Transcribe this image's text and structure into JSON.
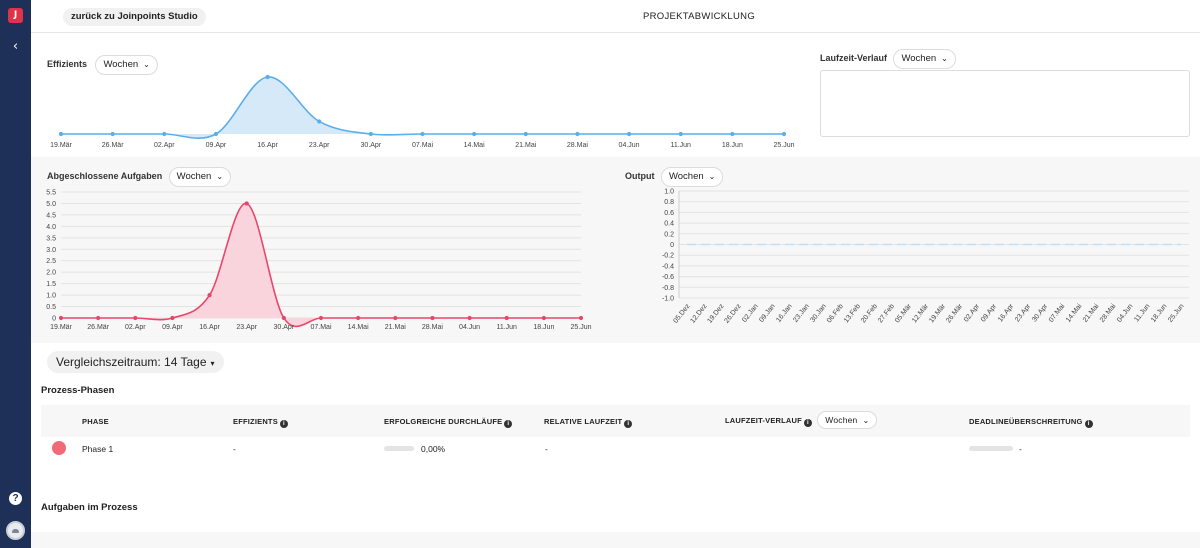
{
  "sidebar": {
    "logo_letter": "J",
    "items": [
      {
        "icon": "chevron-left-icon",
        "glyph": "‹"
      },
      {
        "icon": "help-icon",
        "glyph": "?"
      },
      {
        "icon": "avatar-icon"
      }
    ]
  },
  "header": {
    "back_label": "zurück zu Joinpoints Studio",
    "title": "PROJEKTABWICKLUNG"
  },
  "panels": {
    "efficiency": {
      "label": "Effizients",
      "select_value": "Wochen"
    },
    "runtime_history": {
      "label": "Laufzeit-Verlauf",
      "select_value": "Wochen"
    },
    "completed_tasks": {
      "label": "Abgeschlossene Aufgaben",
      "select_value": "Wochen"
    },
    "output": {
      "label": "Output",
      "select_value": "Wochen"
    }
  },
  "compare": {
    "label": "Vergleichszeitraum: 14 Tage"
  },
  "process_phases": {
    "title": "Prozess-Phasen",
    "columns": [
      "PHASE",
      "EFFIZIENTS",
      "ERFOLGREICHE DURCHLÄUFE",
      "RELATIVE LAUFZEIT",
      "LAUFZEIT-VERLAUF",
      "DEADLINEÜBERSCHREITUNG"
    ],
    "runtime_select": "Wochen",
    "rows": [
      {
        "phase": "Phase 1",
        "efficiency": "-",
        "success_runs": "0,00%",
        "relative_runtime": "-",
        "deadline": "-",
        "color": "#f06a77"
      }
    ]
  },
  "tasks_in_process": {
    "title": "Aufgaben im Prozess"
  },
  "colors": {
    "blue": "#5aaeea",
    "blue_fill": "#d6e9f8",
    "red": "#e8476a",
    "red_fill": "#f9d4dd",
    "sidebar": "#1e3058"
  },
  "chart_data": [
    {
      "type": "area",
      "title": "Effizients",
      "x": [
        "19.Mär",
        "26.Mär",
        "02.Apr",
        "09.Apr",
        "16.Apr",
        "23.Apr",
        "30.Apr",
        "07.Mai",
        "14.Mai",
        "21.Mai",
        "28.Mai",
        "04.Jun",
        "11.Jun",
        "18.Jun",
        "25.Jun"
      ],
      "series": [
        {
          "values": [
            0,
            0,
            0,
            0,
            1,
            0.22,
            0,
            0,
            0,
            0,
            0,
            0,
            0,
            0,
            0
          ]
        }
      ],
      "grid": false
    },
    {
      "type": "area",
      "title": "Abgeschlossene Aufgaben",
      "x": [
        "19.Mär",
        "26.Mär",
        "02.Apr",
        "09.Apr",
        "16.Apr",
        "23.Apr",
        "30.Apr",
        "07.Mai",
        "14.Mai",
        "21.Mai",
        "28.Mai",
        "04.Jun",
        "11.Jun",
        "18.Jun",
        "25.Jun"
      ],
      "series": [
        {
          "values": [
            0,
            0,
            0,
            0,
            1,
            5,
            0,
            0,
            0,
            0,
            0,
            0,
            0,
            0,
            0
          ]
        }
      ],
      "yticks": [
        "0",
        "0.5",
        "1.0",
        "1.5",
        "2.0",
        "2.5",
        "3.0",
        "3.5",
        "4.0",
        "4.5",
        "5.0",
        "5.5"
      ],
      "ylim": [
        0,
        5.5
      ],
      "grid": true
    },
    {
      "type": "line",
      "title": "Output",
      "x": [
        "05.Dez",
        "12.Dez",
        "19.Dez",
        "26.Dez",
        "02.Jan",
        "09.Jan",
        "16.Jan",
        "23.Jan",
        "30.Jan",
        "06.Feb",
        "13.Feb",
        "20.Feb",
        "27.Feb",
        "05.Mär",
        "12.Mär",
        "19.Mär",
        "26.Mär",
        "02.Apr",
        "09.Apr",
        "16.Apr",
        "23.Apr",
        "30.Apr",
        "07.Mai",
        "14.Mai",
        "21.Mai",
        "28.Mai",
        "04.Jun",
        "11.Jun",
        "18.Jun",
        "25.Jun"
      ],
      "series": [
        {
          "values": [
            0,
            0,
            0,
            0,
            0,
            0,
            0,
            0,
            0,
            0,
            0,
            0,
            0,
            0,
            0,
            0,
            0,
            0,
            0,
            0,
            0,
            0,
            0,
            0,
            0,
            0,
            0,
            0,
            0,
            0
          ],
          "style": "dashed"
        }
      ],
      "yticks": [
        "-1.0",
        "-0.8",
        "-0.6",
        "-0.4",
        "-0.2",
        "0",
        "0.2",
        "0.4",
        "0.6",
        "0.8",
        "1.0"
      ],
      "ylim": [
        -1,
        1
      ],
      "grid": true
    }
  ]
}
